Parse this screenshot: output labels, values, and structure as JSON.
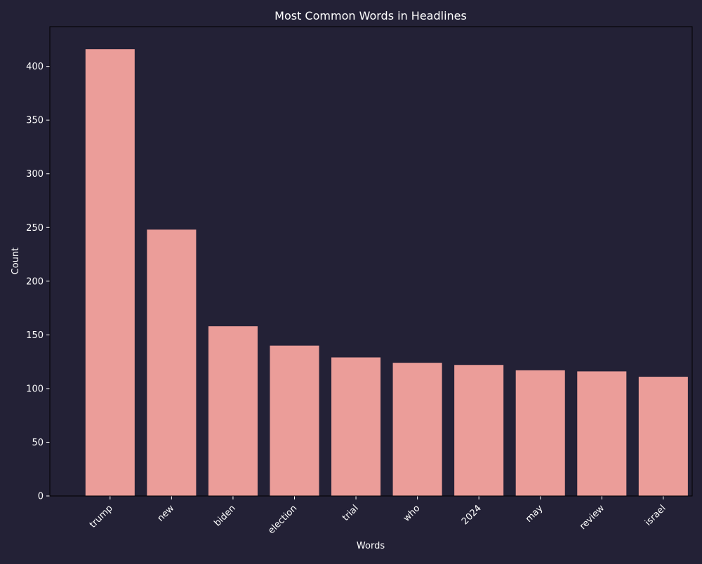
{
  "colors": {
    "background": "#232136",
    "bar": "#eb9d99",
    "text": "#ffffff",
    "axis": "#000000"
  },
  "chart_data": {
    "type": "bar",
    "title": "Most Common Words in Headlines",
    "xlabel": "Words",
    "ylabel": "Count",
    "categories": [
      "trump",
      "new",
      "biden",
      "election",
      "trial",
      "who",
      "2024",
      "may",
      "review",
      "israel"
    ],
    "values": [
      416,
      248,
      158,
      140,
      129,
      124,
      122,
      117,
      116,
      111
    ],
    "ylim": [
      0,
      437
    ],
    "yticks": [
      0,
      50,
      100,
      150,
      200,
      250,
      300,
      350,
      400
    ],
    "grid": false,
    "legend": "none"
  }
}
